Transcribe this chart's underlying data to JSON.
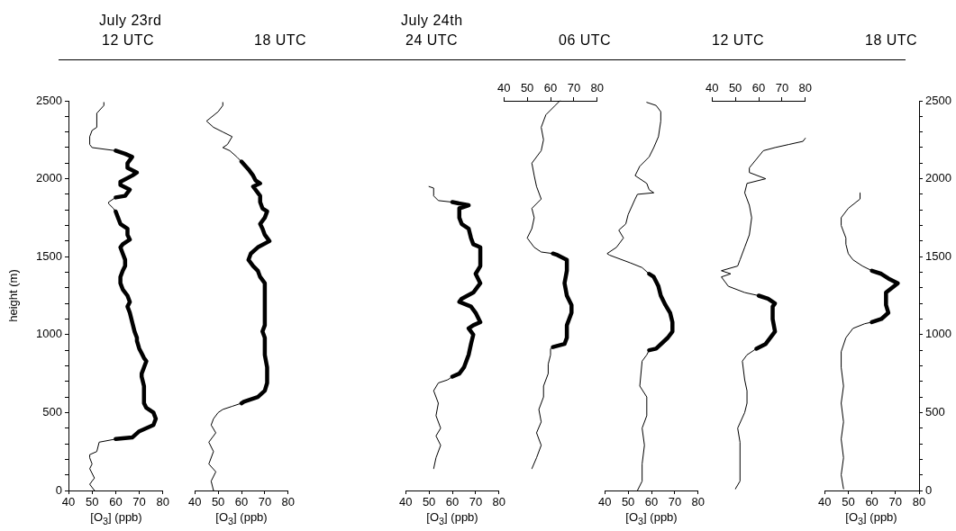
{
  "chart_data": [
    {
      "type": "other",
      "annotations": [
        "July 23rd",
        "12 UTC",
        "18 UTC",
        "July 24th",
        "24 UTC",
        "06 UTC",
        "12 UTC",
        "18 UTC"
      ]
    },
    {
      "type": "line",
      "xlabel": "[O$_{3}$] (ppb)",
      "ylabel": "height (m)",
      "xlim": [
        40,
        80
      ],
      "xticks": [
        40,
        50,
        60,
        70,
        80
      ],
      "ylim": [
        0,
        2500
      ],
      "yticks": [
        0,
        {
          "value": 100,
          "label": null
        },
        {
          "value": 200,
          "label": null
        },
        {
          "value": 300,
          "label": null
        },
        {
          "value": 400,
          "label": null
        },
        500,
        {
          "value": 600,
          "label": null
        },
        {
          "value": 700,
          "label": null
        },
        {
          "value": 800,
          "label": null
        },
        {
          "value": 900,
          "label": null
        },
        1000,
        {
          "value": 1100,
          "label": null
        },
        {
          "value": 1200,
          "label": null
        },
        {
          "value": 1300,
          "label": null
        },
        {
          "value": 1400,
          "label": null
        },
        1500,
        {
          "value": 1600,
          "label": null
        },
        {
          "value": 1700,
          "label": null
        },
        {
          "value": 1800,
          "label": null
        },
        {
          "value": 1900,
          "label": null
        },
        2000,
        {
          "value": 2100,
          "label": null
        },
        {
          "value": 2200,
          "label": null
        },
        {
          "value": 2300,
          "label": null
        },
        {
          "value": 2400,
          "label": null
        },
        2500
      ],
      "marker": "none",
      "series": [
        {
          "color": "#000000",
          "x": [
            51,
            49,
            51,
            49,
            50,
            49,
            49,
            52,
            53,
            60
          ],
          "values": [
            0,
            40,
            80,
            140,
            170,
            210,
            230,
            250,
            310,
            330
          ]
        },
        {
          "color": "#000000",
          "x": [
            60,
            67,
            70,
            73,
            76,
            77,
            76,
            73,
            72,
            72,
            71,
            71,
            72,
            73,
            72,
            71,
            70,
            69,
            69,
            68,
            67,
            66,
            65,
            66,
            65,
            63,
            62,
            62,
            63,
            64,
            64,
            63,
            62,
            63,
            66,
            65,
            65,
            62,
            61,
            60
          ],
          "values": [
            330,
            340,
            380,
            400,
            420,
            460,
            500,
            530,
            560,
            670,
            730,
            750,
            790,
            830,
            850,
            880,
            910,
            960,
            980,
            1020,
            1080,
            1140,
            1180,
            1210,
            1250,
            1290,
            1330,
            1370,
            1410,
            1440,
            1480,
            1520,
            1560,
            1580,
            1610,
            1640,
            1680,
            1710,
            1750,
            1790
          ]
        },
        {
          "color": "#000000",
          "x": [
            60,
            59,
            57,
            57,
            60
          ],
          "values": [
            1790,
            1810,
            1840,
            1850,
            1880
          ]
        },
        {
          "color": "#000000",
          "x": [
            60,
            64,
            66,
            62,
            62,
            67,
            69,
            65,
            65,
            67,
            64,
            60
          ],
          "values": [
            1880,
            1890,
            1930,
            1960,
            1980,
            2020,
            2040,
            2070,
            2100,
            2140,
            2160,
            2180
          ]
        },
        {
          "color": "#000000",
          "x": [
            60,
            50,
            49,
            49,
            50,
            52,
            52,
            55,
            55
          ],
          "values": [
            2180,
            2200,
            2220,
            2270,
            2310,
            2330,
            2420,
            2470,
            2490
          ]
        }
      ]
    },
    {
      "type": "line",
      "xlabel": "[O$_{3}$] (ppb)",
      "xlim": [
        40,
        80
      ],
      "xticks": [
        40,
        50,
        60,
        70,
        80
      ],
      "ylim": [
        0,
        2500
      ],
      "tick_labels": "x",
      "marker": "none",
      "series": [
        {
          "color": "#000000",
          "x": [
            48,
            47,
            49,
            46,
            48,
            46,
            49,
            47,
            48,
            50,
            52,
            56,
            60
          ],
          "values": [
            0,
            60,
            120,
            170,
            250,
            310,
            370,
            420,
            460,
            500,
            520,
            540,
            560
          ]
        },
        {
          "color": "#000000",
          "x": [
            60,
            61,
            67,
            70,
            71,
            71,
            70,
            70,
            69,
            70,
            70,
            68,
            67,
            65,
            63,
            64,
            67,
            72,
            70,
            69,
            68,
            70,
            71,
            69,
            68,
            68,
            65,
            68,
            66,
            65,
            63,
            60
          ],
          "values": [
            560,
            570,
            600,
            640,
            690,
            790,
            870,
            980,
            1020,
            1060,
            1330,
            1370,
            1410,
            1440,
            1480,
            1520,
            1560,
            1600,
            1640,
            1680,
            1710,
            1750,
            1790,
            1810,
            1850,
            1890,
            1950,
            1970,
            1990,
            2020,
            2060,
            2110
          ]
        },
        {
          "color": "#000000",
          "x": [
            60,
            58,
            55,
            52,
            54,
            56,
            52,
            48,
            45,
            50,
            52,
            52
          ],
          "values": [
            2110,
            2140,
            2180,
            2200,
            2220,
            2270,
            2300,
            2330,
            2370,
            2430,
            2470,
            2490
          ]
        }
      ]
    },
    {
      "type": "line",
      "xlabel": "[O$_{3}$] (ppb)",
      "xlim": [
        40,
        80
      ],
      "xticks": [
        40,
        50,
        60,
        70,
        80
      ],
      "ylim": [
        0,
        2500
      ],
      "tick_labels": "x",
      "marker": "none",
      "series": [
        {
          "color": "#000000",
          "x": [
            52,
            53,
            55,
            53,
            55,
            53,
            54,
            52,
            54,
            58,
            60
          ],
          "values": [
            140,
            210,
            290,
            350,
            400,
            480,
            560,
            640,
            690,
            710,
            730
          ]
        },
        {
          "color": "#000000",
          "x": [
            60,
            63,
            65,
            67,
            68,
            69,
            67,
            69,
            72,
            70,
            68,
            63,
            64,
            69,
            72,
            70,
            72,
            72,
            69,
            68,
            67,
            64,
            63,
            63,
            67,
            60
          ],
          "values": [
            730,
            750,
            790,
            870,
            940,
            1000,
            1040,
            1060,
            1080,
            1140,
            1180,
            1210,
            1230,
            1270,
            1330,
            1390,
            1440,
            1560,
            1580,
            1620,
            1680,
            1710,
            1750,
            1810,
            1830,
            1850
          ]
        },
        {
          "color": "#000000",
          "x": [
            60,
            54,
            52,
            52,
            50
          ],
          "values": [
            1850,
            1860,
            1890,
            1940,
            1950
          ]
        }
      ]
    },
    {
      "type": "line",
      "xlim": [
        40,
        80
      ],
      "xticks": [
        40,
        50,
        60,
        70,
        80
      ],
      "ylim": [
        0,
        2500
      ],
      "tick_labels": "x",
      "marker": "none",
      "series": [
        {
          "color": "#000000",
          "x": [
            52,
            54,
            56,
            54,
            56,
            55,
            57,
            57,
            59,
            59,
            60,
            60,
            61
          ],
          "values": [
            140,
            210,
            290,
            370,
            440,
            520,
            600,
            670,
            750,
            810,
            870,
            910,
            920
          ]
        },
        {
          "color": "#000000",
          "x": [
            61,
            66,
            67,
            67,
            69,
            69,
            67,
            66,
            67,
            67,
            63,
            61
          ],
          "values": [
            920,
            940,
            980,
            1060,
            1140,
            1190,
            1250,
            1330,
            1410,
            1480,
            1510,
            1520
          ]
        },
        {
          "color": "#000000",
          "x": [
            61,
            56,
            53,
            50,
            52,
            53,
            52,
            56,
            54,
            53,
            52,
            56,
            57,
            56,
            58,
            62,
            64
          ],
          "values": [
            1520,
            1530,
            1560,
            1620,
            1680,
            1750,
            1810,
            1870,
            1950,
            2020,
            2100,
            2180,
            2250,
            2330,
            2410,
            2470,
            2500
          ]
        }
      ]
    },
    {
      "type": "line",
      "xlabel": "[O$_{3}$] (ppb)",
      "xlim": [
        40,
        80
      ],
      "xticks": [
        40,
        50,
        60,
        70,
        80
      ],
      "ylim": [
        0,
        2500
      ],
      "tick_labels": "x",
      "marker": "none",
      "series": [
        {
          "color": "#000000",
          "x": [
            54,
            56,
            56,
            57,
            56,
            58,
            58,
            55,
            56,
            58,
            59
          ],
          "values": [
            0,
            60,
            170,
            290,
            400,
            480,
            600,
            670,
            830,
            870,
            900
          ]
        },
        {
          "color": "#000000",
          "x": [
            59,
            62,
            67,
            69,
            69,
            68,
            66,
            64,
            63,
            61,
            59
          ],
          "values": [
            900,
            910,
            980,
            1020,
            1080,
            1140,
            1190,
            1250,
            1310,
            1370,
            1390
          ]
        },
        {
          "color": "#000000",
          "x": [
            59,
            56,
            51,
            42,
            41,
            45,
            48,
            46,
            49,
            50,
            53,
            54,
            61,
            59,
            58,
            53,
            55,
            59,
            61,
            63,
            64,
            64,
            62,
            58
          ],
          "values": [
            1390,
            1430,
            1460,
            1510,
            1520,
            1560,
            1620,
            1670,
            1710,
            1770,
            1870,
            1900,
            1910,
            1930,
            1970,
            2020,
            2080,
            2140,
            2200,
            2270,
            2370,
            2430,
            2470,
            2490
          ]
        }
      ]
    },
    {
      "type": "line",
      "xlim": [
        40,
        80
      ],
      "xticks": [
        40,
        50,
        60,
        70,
        80
      ],
      "ylim": [
        0,
        2500
      ],
      "tick_labels": "x",
      "marker": "none",
      "series": [
        {
          "color": "#000000",
          "x": [
            50,
            52,
            52,
            51,
            54,
            55,
            55,
            54,
            53,
            55,
            59
          ],
          "values": [
            10,
            60,
            310,
            400,
            500,
            560,
            640,
            710,
            830,
            870,
            910
          ]
        },
        {
          "color": "#000000",
          "x": [
            59,
            63,
            67,
            66,
            66,
            67,
            64,
            60
          ],
          "values": [
            910,
            940,
            1020,
            1100,
            1180,
            1200,
            1230,
            1250
          ]
        },
        {
          "color": "#000000",
          "x": [
            60,
            54,
            47,
            44,
            48,
            44,
            51,
            52,
            54,
            56,
            57,
            56,
            54,
            55,
            63,
            56,
            56,
            62,
            67,
            73,
            79,
            80
          ],
          "values": [
            1250,
            1270,
            1310,
            1370,
            1390,
            1410,
            1440,
            1480,
            1560,
            1640,
            1750,
            1830,
            1910,
            1970,
            2000,
            2040,
            2070,
            2180,
            2200,
            2220,
            2240,
            2260
          ]
        }
      ]
    },
    {
      "type": "line",
      "xlabel": "[O$_{3}$] (ppb)",
      "xlim": [
        40,
        80
      ],
      "xticks": [
        40,
        50,
        60,
        70,
        80
      ],
      "y2lim": [
        0,
        2500
      ],
      "y2ticks": [
        0,
        {
          "value": 100,
          "label": null
        },
        {
          "value": 200,
          "label": null
        },
        {
          "value": 300,
          "label": null
        },
        {
          "value": 400,
          "label": null
        },
        500,
        {
          "value": 600,
          "label": null
        },
        {
          "value": 700,
          "label": null
        },
        {
          "value": 800,
          "label": null
        },
        {
          "value": 900,
          "label": null
        },
        1000,
        {
          "value": 1100,
          "label": null
        },
        {
          "value": 1200,
          "label": null
        },
        {
          "value": 1300,
          "label": null
        },
        {
          "value": 1400,
          "label": null
        },
        1500,
        {
          "value": 1600,
          "label": null
        },
        {
          "value": 1700,
          "label": null
        },
        {
          "value": 1800,
          "label": null
        },
        {
          "value": 1900,
          "label": null
        },
        2000,
        {
          "value": 2100,
          "label": null
        },
        {
          "value": 2200,
          "label": null
        },
        {
          "value": 2300,
          "label": null
        },
        {
          "value": 2400,
          "label": null
        },
        2500
      ],
      "marker": "none",
      "series": [
        {
          "color": "#000000",
          "axis": "y2",
          "x": [
            48,
            47,
            48,
            47,
            48,
            47,
            48,
            47,
            47,
            49,
            52,
            57,
            60
          ],
          "values": [
            10,
            100,
            210,
            330,
            440,
            560,
            670,
            790,
            890,
            980,
            1040,
            1070,
            1080
          ]
        },
        {
          "color": "#000000",
          "axis": "y2",
          "x": [
            60,
            64,
            67,
            66,
            66,
            71,
            67,
            64,
            60
          ],
          "values": [
            1080,
            1100,
            1140,
            1190,
            1270,
            1330,
            1360,
            1390,
            1410
          ]
        },
        {
          "color": "#000000",
          "axis": "y2",
          "x": [
            60,
            56,
            52,
            50,
            49,
            49,
            47,
            47,
            50,
            55,
            55
          ],
          "values": [
            1410,
            1440,
            1480,
            1520,
            1580,
            1620,
            1700,
            1750,
            1810,
            1870,
            1910
          ]
        }
      ]
    }
  ]
}
